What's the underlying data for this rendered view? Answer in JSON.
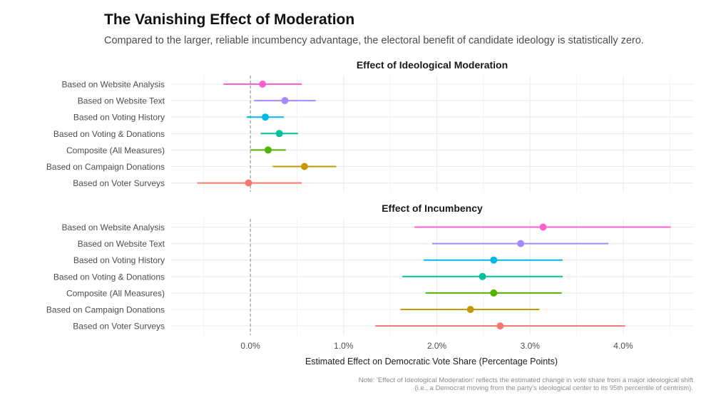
{
  "header": {
    "title": "The Vanishing Effect of Moderation",
    "subtitle": "Compared to the larger, reliable incumbency advantage, the electoral benefit of candidate ideology is statistically zero."
  },
  "note": {
    "line1": "Note: 'Effect of Ideological Moderation' reflects the estimated change in vote share from a major ideological shift",
    "line2": "(i.e., a Democrat moving from the party's ideological center to its 95th percentile of centrism)."
  },
  "chart_data": {
    "type": "scatter",
    "subtype": "faceted point-range (coefficient plot)",
    "xlabel": "Estimated Effect on Democratic Vote Share (Percentage Points)",
    "xlim": [
      -0.85,
      4.75
    ],
    "x_ticks": [
      0.0,
      1.0,
      2.0,
      3.0,
      4.0
    ],
    "x_tick_labels": [
      "0.0%",
      "1.0%",
      "2.0%",
      "3.0%",
      "4.0%"
    ],
    "reference_line": 0.0,
    "grid": true,
    "legend": "none",
    "categories": [
      "Based on Website Analysis",
      "Based on Website Text",
      "Based on Voting History",
      "Based on Voting & Donations",
      "Composite (All Measures)",
      "Based on Campaign Donations",
      "Based on Voter Surveys"
    ],
    "colors": [
      "#FF61CC",
      "#A58AFF",
      "#00B8E7",
      "#00C19A",
      "#53B400",
      "#C49A00",
      "#F8766D"
    ],
    "panels": [
      {
        "title": "Effect of Ideological Moderation",
        "estimates": [
          0.13,
          0.37,
          0.16,
          0.31,
          0.19,
          0.58,
          -0.02
        ],
        "lower": [
          -0.29,
          0.04,
          -0.04,
          0.11,
          0.0,
          0.24,
          -0.57
        ],
        "upper": [
          0.55,
          0.7,
          0.36,
          0.51,
          0.38,
          0.92,
          0.55
        ]
      },
      {
        "title": "Effect of Incumbency",
        "estimates": [
          3.14,
          2.9,
          2.61,
          2.49,
          2.61,
          2.36,
          2.68
        ],
        "lower": [
          1.76,
          1.95,
          1.86,
          1.63,
          1.88,
          1.61,
          1.34
        ],
        "upper": [
          4.51,
          3.84,
          3.35,
          3.35,
          3.34,
          3.1,
          4.02
        ]
      }
    ]
  }
}
